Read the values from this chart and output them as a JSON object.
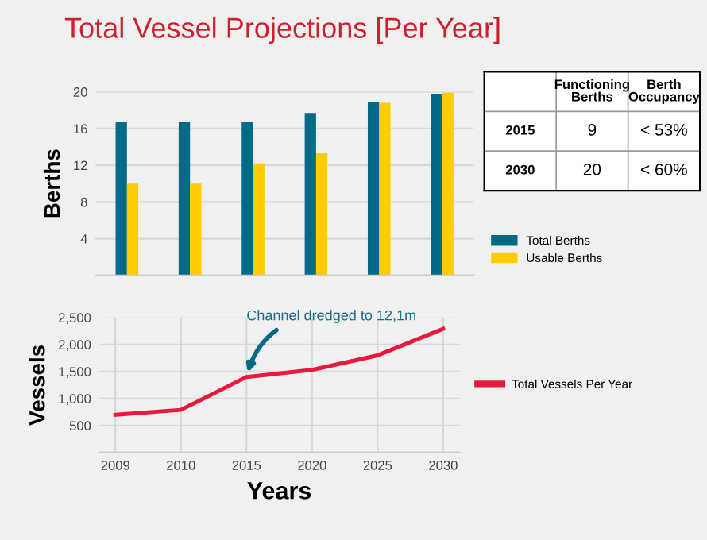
{
  "chart_data": [
    {
      "type": "bar",
      "title": "Total Vessel Projections [Per Year]",
      "ylabel": "Berths",
      "categories": [
        null,
        null,
        null,
        null,
        null,
        null
      ],
      "series": [
        {
          "name": "Total Berths",
          "color": "#006a87",
          "values": [
            16.7,
            16.7,
            16.7,
            17.7,
            18.9,
            19.8
          ]
        },
        {
          "name": "Usable Berths",
          "color": "#ffcc00",
          "values": [
            10,
            10,
            12.2,
            13.3,
            18.8,
            19.9
          ]
        }
      ],
      "ylim": [
        0,
        20
      ],
      "yticks": [
        {
          "value": 0,
          "label": null
        },
        4,
        8,
        12,
        16,
        20
      ],
      "grid": "y",
      "legend": "bottom right"
    },
    {
      "type": "line",
      "xlabel": "Years",
      "ylabel": "Vessels",
      "categories": [
        "2009",
        "2010",
        "2015",
        "2020",
        "2025",
        "2030"
      ],
      "series": [
        {
          "name": "Total Vessels Per Year",
          "color": "#e8193c",
          "values": [
            700,
            790,
            1400,
            1530,
            1800,
            2290
          ]
        }
      ],
      "ylim": [
        0,
        2500
      ],
      "yticks": [
        {
          "value": 0,
          "label": null
        },
        {
          "value": 500,
          "label": "500"
        },
        {
          "value": 1000,
          "label": "1,000"
        },
        {
          "value": 1500,
          "label": "1,500"
        },
        {
          "value": 2000,
          "label": "2,000"
        },
        {
          "value": 2500,
          "label": "2,500"
        }
      ],
      "grid": true,
      "legend": "right",
      "marker": "none",
      "line_style": "solid",
      "annotations": [
        {
          "text": "Channel dredged to 12,1m",
          "x": "2015",
          "y": 1400
        }
      ]
    },
    {
      "type": "other",
      "annotations": [
        "Functioning Berths",
        "Berth Occupancy",
        "2015",
        "9",
        "< 53%",
        "2030",
        "20",
        "< 60%"
      ]
    }
  ]
}
